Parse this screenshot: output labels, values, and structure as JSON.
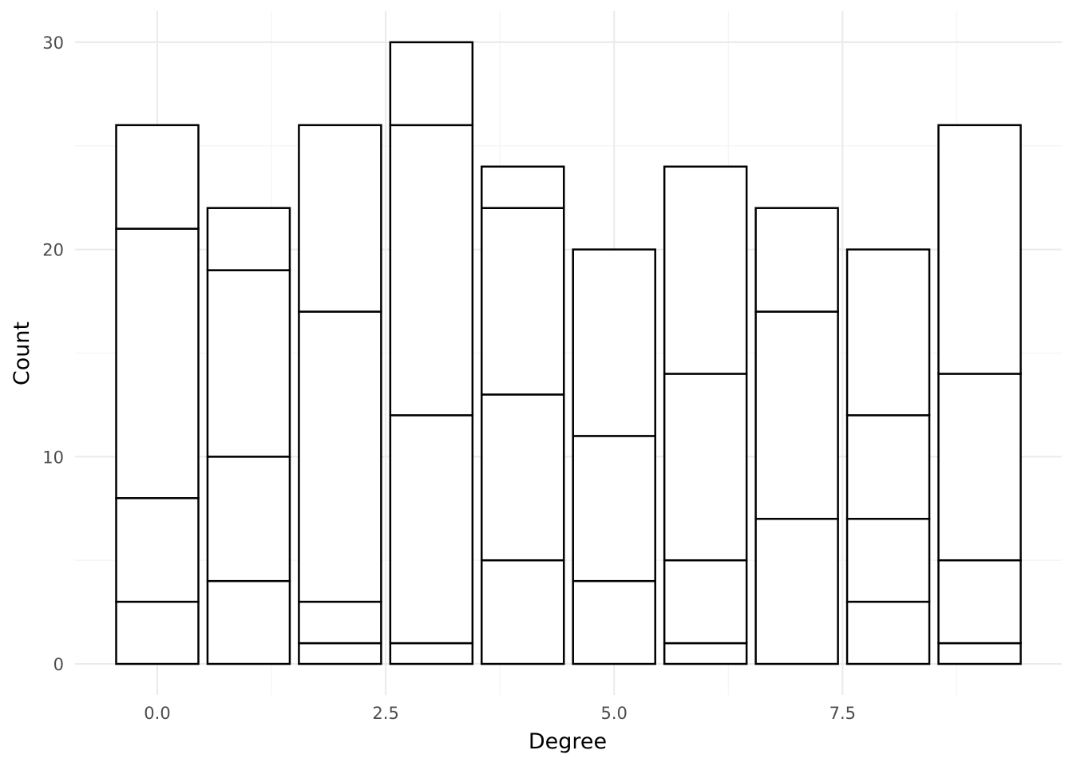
{
  "chart_data": {
    "type": "bar",
    "stacked": true,
    "title": "",
    "xlabel": "Degree",
    "ylabel": "Count",
    "x": [
      0,
      1,
      2,
      3,
      4,
      5,
      6,
      7,
      8,
      9
    ],
    "xlim": [
      -0.9,
      9.9
    ],
    "ylim": [
      -1.5,
      31.5
    ],
    "x_ticks": [
      0.0,
      2.5,
      5.0,
      7.5
    ],
    "x_tick_labels": [
      "0.0",
      "2.5",
      "5.0",
      "7.5"
    ],
    "y_ticks": [
      0,
      10,
      20,
      30
    ],
    "y_tick_labels": [
      "0",
      "10",
      "20",
      "30"
    ],
    "segment_boundaries": [
      [
        0,
        3,
        8,
        21,
        26
      ],
      [
        0,
        4,
        10,
        19,
        22
      ],
      [
        0,
        1,
        3,
        17,
        26
      ],
      [
        0,
        1,
        12,
        26,
        30
      ],
      [
        0,
        5,
        13,
        22,
        24
      ],
      [
        0,
        4,
        11,
        20
      ],
      [
        0,
        1,
        5,
        14,
        24
      ],
      [
        0,
        7,
        17,
        22
      ],
      [
        0,
        3,
        7,
        12,
        20
      ],
      [
        0,
        1,
        5,
        14,
        26
      ]
    ],
    "totals": [
      26,
      22,
      26,
      30,
      24,
      20,
      24,
      22,
      20,
      26
    ],
    "grid": true,
    "legend": "none",
    "colors": {
      "bar_fill": "#ffffff",
      "bar_outline": "#000000",
      "grid_major": "#ebebeb",
      "grid_minor": "#f3f3f3",
      "tick_text": "#4d4d4d",
      "axis_title": "#000000"
    }
  }
}
